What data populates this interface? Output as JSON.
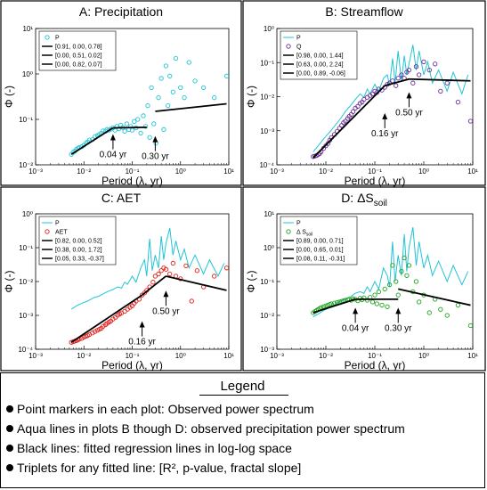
{
  "colors": {
    "cyan": "#21c4d6",
    "purple": "#6a2e96",
    "red": "#e0201b",
    "green": "#1fa51f",
    "black": "#000000"
  },
  "chart_data": [
    {
      "panel": "A",
      "type": "scatter",
      "title": "A: Precipitation",
      "xlabel": "Period (λ, yr)",
      "ylabel": "Φ (-)",
      "xscale": "log",
      "yscale": "log",
      "xlim": [
        0.001,
        10
      ],
      "ylim": [
        0.01,
        10
      ],
      "xticks": [
        "10⁻³",
        "10⁻²",
        "10⁻¹",
        "10⁰",
        "10¹"
      ],
      "yticks": [
        "10⁻²",
        "10⁻¹",
        "10⁰",
        "10¹"
      ],
      "legend_position": "top-left",
      "series": [
        {
          "name": "P",
          "kind": "markers",
          "color": "#21c4d6",
          "x": [
            0.0055,
            0.006,
            0.0065,
            0.007,
            0.0075,
            0.008,
            0.009,
            0.01,
            0.011,
            0.012,
            0.013,
            0.015,
            0.017,
            0.019,
            0.021,
            0.023,
            0.025,
            0.028,
            0.03,
            0.033,
            0.036,
            0.04,
            0.044,
            0.048,
            0.053,
            0.058,
            0.064,
            0.07,
            0.077,
            0.085,
            0.093,
            0.1,
            0.11,
            0.12,
            0.13,
            0.15,
            0.17,
            0.19,
            0.21,
            0.23,
            0.25,
            0.28,
            0.31,
            0.35,
            0.4,
            0.45,
            0.5,
            0.55,
            0.6,
            0.7,
            0.8,
            1.0,
            1.2,
            1.5,
            2.0,
            3.0,
            5.0,
            9.0
          ],
          "y": [
            0.017,
            0.019,
            0.02,
            0.022,
            0.023,
            0.024,
            0.025,
            0.027,
            0.03,
            0.032,
            0.035,
            0.036,
            0.042,
            0.044,
            0.047,
            0.05,
            0.056,
            0.055,
            0.06,
            0.058,
            0.061,
            0.065,
            0.058,
            0.07,
            0.062,
            0.075,
            0.066,
            0.055,
            0.08,
            0.06,
            0.07,
            0.058,
            0.09,
            0.065,
            0.1,
            0.05,
            0.12,
            0.07,
            0.2,
            0.04,
            0.5,
            0.08,
            0.03,
            0.3,
            0.8,
            0.06,
            1.5,
            0.2,
            0.9,
            0.4,
            2.2,
            0.5,
            0.3,
            1.8,
            0.7,
            0.5,
            0.3,
            0.9
          ]
        },
        {
          "name": "[0.91, 0.00, 0.78]",
          "kind": "fit",
          "color": "#000000",
          "x": [
            0.0055,
            0.04
          ],
          "y": [
            0.017,
            0.065
          ]
        },
        {
          "name": "[0.00, 0.51, 0.02]",
          "kind": "fit",
          "color": "#000000",
          "x": [
            0.04,
            0.2
          ],
          "y": [
            0.065,
            0.067
          ]
        },
        {
          "name": "[0.00, 0.82, 0.07]",
          "kind": "fit",
          "color": "#000000",
          "x": [
            0.3,
            9.0
          ],
          "y": [
            0.15,
            0.22
          ]
        }
      ],
      "annotations": [
        {
          "text": "0.04 yr",
          "x": 0.04,
          "y": 0.022
        },
        {
          "text": "0.30 yr",
          "x": 0.3,
          "y": 0.02
        }
      ]
    },
    {
      "panel": "B",
      "type": "scatter",
      "title": "B: Streamflow",
      "xlabel": "Period (λ, yr)",
      "ylabel": "Φ (-)",
      "xscale": "log",
      "yscale": "log",
      "xlim": [
        0.001,
        10
      ],
      "ylim": [
        0.0001,
        10
      ],
      "xticks": [
        "10⁻³",
        "10⁻²",
        "10⁻¹",
        "10⁰",
        "10¹"
      ],
      "yticks": [
        "10⁻⁴",
        "10⁻³",
        "10⁻²",
        "10⁻¹",
        "10⁰"
      ],
      "legend_position": "top-left",
      "series": [
        {
          "name": "P",
          "kind": "line",
          "color": "#21c4d6",
          "x": [
            0.0055,
            0.007,
            0.009,
            0.012,
            0.016,
            0.02,
            0.025,
            0.032,
            0.04,
            0.05,
            0.06,
            0.07,
            0.08,
            0.1,
            0.12,
            0.15,
            0.18,
            0.2,
            0.23,
            0.26,
            0.3,
            0.35,
            0.4,
            0.45,
            0.5,
            0.6,
            0.7,
            0.8,
            1.0,
            1.2,
            1.5,
            2.0,
            3.0,
            4.0,
            6.0,
            8.0
          ],
          "y": [
            0.0003,
            0.0005,
            0.0009,
            0.0016,
            0.003,
            0.005,
            0.009,
            0.015,
            0.025,
            0.04,
            0.03,
            0.06,
            0.04,
            0.09,
            0.05,
            0.15,
            0.2,
            0.08,
            0.8,
            0.1,
            1.5,
            0.12,
            1.0,
            0.2,
            0.5,
            2.5,
            0.3,
            1.5,
            0.2,
            0.6,
            0.1,
            0.3,
            0.05,
            0.25,
            0.04,
            0.2
          ]
        },
        {
          "name": "Q",
          "kind": "markers",
          "color": "#6a2e96",
          "x": [
            0.0055,
            0.006,
            0.0065,
            0.007,
            0.0075,
            0.008,
            0.009,
            0.01,
            0.011,
            0.012,
            0.013,
            0.015,
            0.017,
            0.019,
            0.021,
            0.023,
            0.025,
            0.028,
            0.03,
            0.033,
            0.036,
            0.04,
            0.045,
            0.05,
            0.055,
            0.06,
            0.07,
            0.08,
            0.09,
            0.1,
            0.11,
            0.12,
            0.14,
            0.16,
            0.18,
            0.2,
            0.23,
            0.27,
            0.3,
            0.35,
            0.4,
            0.45,
            0.5,
            0.6,
            0.7,
            0.8,
            1.0,
            1.3,
            1.7,
            2.2,
            3.0,
            5.0,
            9.0
          ],
          "y": [
            0.0002,
            0.00021,
            0.00022,
            0.00024,
            0.00026,
            0.0003,
            0.0004,
            0.0005,
            0.0006,
            0.0008,
            0.001,
            0.0013,
            0.0017,
            0.0022,
            0.0028,
            0.0035,
            0.004,
            0.005,
            0.006,
            0.007,
            0.009,
            0.012,
            0.014,
            0.018,
            0.02,
            0.025,
            0.03,
            0.035,
            0.04,
            0.05,
            0.045,
            0.06,
            0.055,
            0.07,
            0.09,
            0.1,
            0.12,
            0.08,
            0.15,
            0.2,
            0.15,
            0.25,
            0.3,
            0.1,
            0.4,
            0.2,
            0.6,
            0.3,
            0.5,
            0.05,
            0.1,
            0.02,
            0.004
          ]
        },
        {
          "name": "[0.98, 0.00, 1.44]",
          "kind": "fit",
          "color": "#000000",
          "x": [
            0.0055,
            0.16
          ],
          "y": [
            0.00018,
            0.08
          ]
        },
        {
          "name": "[0.63, 0.00, 2.24]",
          "kind": "fit",
          "color": "#000000",
          "x": [
            0.16,
            0.5
          ],
          "y": [
            0.08,
            0.14
          ]
        },
        {
          "name": "[0.00, 0.89, -0.06]",
          "kind": "fit",
          "color": "#000000",
          "x": [
            0.5,
            9.0
          ],
          "y": [
            0.14,
            0.12
          ]
        }
      ],
      "annotations": [
        {
          "text": "0.16 yr",
          "x": 0.16,
          "y": 0.0022
        },
        {
          "text": "0.50 yr",
          "x": 0.5,
          "y": 0.013
        }
      ]
    },
    {
      "panel": "C",
      "type": "scatter",
      "title": "C: AET",
      "xlabel": "Period (λ, yr)",
      "ylabel": "Φ (-)",
      "xscale": "log",
      "yscale": "log",
      "xlim": [
        0.001,
        10
      ],
      "ylim": [
        0.0001,
        10
      ],
      "xticks": [
        "10⁻³",
        "10⁻²",
        "10⁻¹",
        "10⁰",
        "10¹"
      ],
      "yticks": [
        "10⁻⁴",
        "10⁻³",
        "10⁻²",
        "10⁻¹",
        "10⁰"
      ],
      "legend_position": "top-left",
      "series": [
        {
          "name": "P",
          "kind": "line",
          "color": "#21c4d6",
          "x": [
            0.0055,
            0.007,
            0.009,
            0.012,
            0.016,
            0.02,
            0.025,
            0.032,
            0.04,
            0.05,
            0.06,
            0.07,
            0.08,
            0.1,
            0.12,
            0.15,
            0.18,
            0.2,
            0.23,
            0.26,
            0.3,
            0.35,
            0.4,
            0.45,
            0.5,
            0.6,
            0.7,
            0.8,
            1.0,
            1.2,
            1.5,
            2.0,
            3.0,
            4.0,
            6.0,
            8.0
          ],
          "y": [
            0.003,
            0.004,
            0.005,
            0.006,
            0.008,
            0.009,
            0.011,
            0.014,
            0.016,
            0.02,
            0.018,
            0.03,
            0.025,
            0.05,
            0.03,
            0.1,
            0.2,
            0.05,
            1.2,
            0.08,
            0.3,
            0.1,
            1.5,
            0.2,
            0.8,
            3.0,
            0.3,
            1.0,
            0.2,
            0.5,
            0.1,
            0.3,
            0.06,
            0.2,
            0.05,
            0.15
          ]
        },
        {
          "name": "AET",
          "kind": "markers",
          "color": "#e0201b",
          "x": [
            0.0055,
            0.006,
            0.0065,
            0.007,
            0.0075,
            0.008,
            0.009,
            0.01,
            0.011,
            0.012,
            0.013,
            0.015,
            0.017,
            0.019,
            0.021,
            0.023,
            0.025,
            0.028,
            0.03,
            0.033,
            0.036,
            0.04,
            0.045,
            0.05,
            0.055,
            0.06,
            0.07,
            0.08,
            0.09,
            0.1,
            0.11,
            0.12,
            0.14,
            0.16,
            0.18,
            0.2,
            0.23,
            0.27,
            0.3,
            0.35,
            0.4,
            0.45,
            0.5,
            0.6,
            0.7,
            0.8,
            1.0,
            1.3,
            1.7,
            2.2,
            3.0,
            5.0,
            9.0
          ],
          "y": [
            0.00018,
            0.00019,
            0.0002,
            0.00021,
            0.00022,
            0.00024,
            0.00025,
            0.00028,
            0.0003,
            0.00032,
            0.00035,
            0.0004,
            0.00045,
            0.0005,
            0.00055,
            0.0006,
            0.0007,
            0.0008,
            0.0009,
            0.001,
            0.0011,
            0.0013,
            0.0015,
            0.0018,
            0.002,
            0.0022,
            0.0025,
            0.003,
            0.0035,
            0.004,
            0.005,
            0.006,
            0.007,
            0.01,
            0.012,
            0.015,
            0.02,
            0.03,
            0.05,
            0.06,
            0.08,
            0.1,
            0.09,
            0.06,
            0.15,
            0.05,
            0.04,
            0.12,
            0.006,
            0.08,
            0.02,
            0.05,
            0.1
          ]
        },
        {
          "name": "[0.82, 0.00, 0.52]",
          "kind": "fit",
          "color": "#000000",
          "x": [
            0.0055,
            0.16
          ],
          "y": [
            0.00018,
            0.01
          ]
        },
        {
          "name": "[0.38, 0.00, 1.72]",
          "kind": "fit",
          "color": "#000000",
          "x": [
            0.16,
            0.5
          ],
          "y": [
            0.01,
            0.05
          ]
        },
        {
          "name": "[0.05, 0.33, -0.37]",
          "kind": "fit",
          "color": "#000000",
          "x": [
            0.5,
            9.0
          ],
          "y": [
            0.05,
            0.015
          ]
        }
      ],
      "annotations": [
        {
          "text": "0.16 yr",
          "x": 0.16,
          "y": 0.0003
        },
        {
          "text": "0.50 yr",
          "x": 0.5,
          "y": 0.004
        }
      ]
    },
    {
      "panel": "D",
      "type": "scatter",
      "title": "D: ΔS",
      "title_subscript": "soil",
      "xlabel": "Period (λ, yr)",
      "ylabel": "Φ (-)",
      "xscale": "log",
      "yscale": "log",
      "xlim": [
        0.001,
        10
      ],
      "ylim": [
        0.001,
        10
      ],
      "xticks": [
        "10⁻³",
        "10⁻²",
        "10⁻¹",
        "10⁰",
        "10¹"
      ],
      "yticks": [
        "10⁻³",
        "10⁻²",
        "10⁻¹",
        "10⁰",
        "10¹"
      ],
      "legend_position": "top-left",
      "series": [
        {
          "name": "P",
          "kind": "line",
          "color": "#21c4d6",
          "x": [
            0.0055,
            0.007,
            0.009,
            0.012,
            0.016,
            0.02,
            0.025,
            0.032,
            0.04,
            0.05,
            0.06,
            0.07,
            0.08,
            0.1,
            0.12,
            0.15,
            0.18,
            0.2,
            0.23,
            0.26,
            0.3,
            0.35,
            0.4,
            0.45,
            0.5,
            0.6,
            0.7,
            0.8,
            1.0,
            1.2,
            1.5,
            2.0,
            3.0,
            4.0,
            6.0,
            8.0
          ],
          "y": [
            0.009,
            0.011,
            0.014,
            0.017,
            0.022,
            0.026,
            0.03,
            0.036,
            0.045,
            0.05,
            0.045,
            0.07,
            0.05,
            0.1,
            0.06,
            0.25,
            0.15,
            0.07,
            1.5,
            0.1,
            0.6,
            0.15,
            2.5,
            0.2,
            1.0,
            4.0,
            0.3,
            1.5,
            0.25,
            0.6,
            0.15,
            0.4,
            0.1,
            0.3,
            0.08,
            0.2
          ]
        },
        {
          "name": "Δ S",
          "name_subscript": "soil",
          "kind": "markers",
          "color": "#1fa51f",
          "x": [
            0.0055,
            0.006,
            0.0065,
            0.007,
            0.0075,
            0.008,
            0.009,
            0.01,
            0.011,
            0.012,
            0.013,
            0.015,
            0.017,
            0.019,
            0.021,
            0.023,
            0.025,
            0.028,
            0.03,
            0.033,
            0.036,
            0.04,
            0.045,
            0.05,
            0.055,
            0.06,
            0.07,
            0.08,
            0.09,
            0.1,
            0.11,
            0.12,
            0.14,
            0.16,
            0.18,
            0.2,
            0.23,
            0.27,
            0.3,
            0.35,
            0.4,
            0.45,
            0.5,
            0.6,
            0.7,
            0.8,
            1.0,
            1.3,
            1.7,
            2.2,
            3.0,
            5.0,
            9.0
          ],
          "y": [
            0.012,
            0.013,
            0.014,
            0.015,
            0.016,
            0.017,
            0.018,
            0.019,
            0.02,
            0.021,
            0.022,
            0.023,
            0.024,
            0.025,
            0.026,
            0.027,
            0.028,
            0.029,
            0.03,
            0.028,
            0.031,
            0.03,
            0.027,
            0.032,
            0.029,
            0.033,
            0.028,
            0.034,
            0.025,
            0.04,
            0.022,
            0.05,
            0.02,
            0.06,
            0.018,
            0.08,
            0.3,
            0.1,
            0.04,
            0.2,
            0.5,
            0.15,
            0.3,
            0.05,
            0.1,
            0.025,
            0.04,
            0.012,
            0.03,
            0.015,
            0.01,
            0.02,
            0.005
          ]
        },
        {
          "name": "[0.89, 0.00, 0.71]",
          "kind": "fit",
          "color": "#000000",
          "x": [
            0.0055,
            0.04
          ],
          "y": [
            0.012,
            0.03
          ]
        },
        {
          "name": "[0.00, 0.65, 0.01]",
          "kind": "fit",
          "color": "#000000",
          "x": [
            0.04,
            0.3
          ],
          "y": [
            0.03,
            0.03
          ]
        },
        {
          "name": "[0.08, 0.11, -0.31]",
          "kind": "fit",
          "color": "#000000",
          "x": [
            0.3,
            9.0
          ],
          "y": [
            0.06,
            0.02
          ]
        }
      ],
      "annotations": [
        {
          "text": "0.04 yr",
          "x": 0.04,
          "y": 0.006
        },
        {
          "text": "0.30 yr",
          "x": 0.3,
          "y": 0.006
        }
      ]
    }
  ],
  "legend": {
    "title": "Legend",
    "items": [
      "Point markers in each plot: Observed power spectrum",
      "Aqua lines in plots B though D:  observed precipitation power spectrum",
      "Black lines: fitted regression lines in log-log space",
      "Triplets for any fitted line: [R², p-value, fractal slope]"
    ]
  }
}
